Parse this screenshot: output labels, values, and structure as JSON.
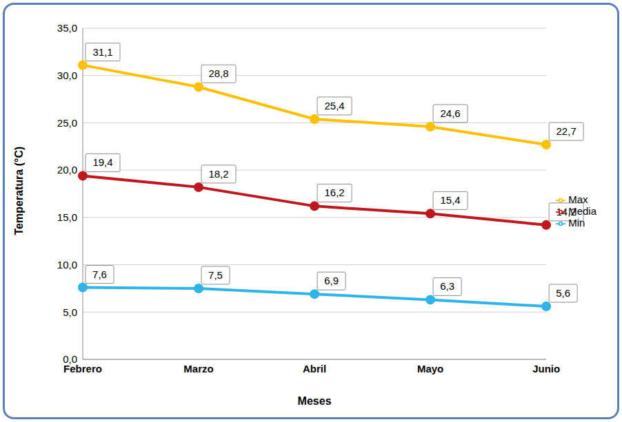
{
  "chart_data": {
    "type": "line",
    "categories": [
      "Febrero",
      "Marzo",
      "Abril",
      "Mayo",
      "Junio"
    ],
    "x_label": "Meses",
    "y_label": "Temperatura (°C)",
    "series": [
      {
        "name": "Min",
        "color": "#2fb4ea",
        "values": [
          7.6,
          7.5,
          6.9,
          6.3,
          5.6
        ],
        "value_labels": [
          "7,6",
          "7,5",
          "6,9",
          "6,3",
          "5,6"
        ],
        "marker": "circle"
      },
      {
        "name": "Media",
        "color": "#c0171c",
        "values": [
          19.4,
          18.2,
          16.2,
          15.4,
          14.2
        ],
        "value_labels": [
          "19,4",
          "18,2",
          "16,2",
          "15,4",
          "14,2"
        ],
        "marker": "circle"
      },
      {
        "name": "Max",
        "color": "#ffc000",
        "values": [
          31.1,
          28.8,
          25.4,
          24.6,
          22.7
        ],
        "value_labels": [
          "31,1",
          "28,8",
          "25,4",
          "24,6",
          "22,7"
        ],
        "marker": "circle"
      }
    ],
    "ylim": [
      0,
      35
    ],
    "yticks": [
      {
        "value": 0,
        "label": "0,0"
      },
      {
        "value": 5,
        "label": "5,0"
      },
      {
        "value": 10,
        "label": "10,0"
      },
      {
        "value": 15,
        "label": "15,0"
      },
      {
        "value": 20,
        "label": "20,0"
      },
      {
        "value": 25,
        "label": "25,0"
      },
      {
        "value": 30,
        "label": "30,0"
      },
      {
        "value": 35,
        "label": "35,0"
      }
    ],
    "grid": true,
    "legend": "right",
    "data_labels": true
  }
}
